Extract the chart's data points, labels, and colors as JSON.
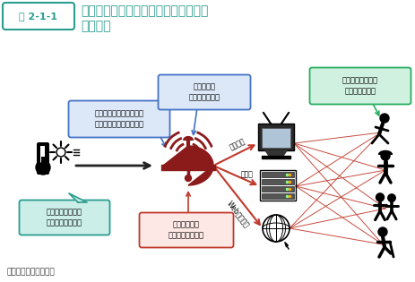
{
  "title_box_label": "図 2-1-1",
  "title_line1": "熱中症予防に関する新たな情報発信の",
  "title_line2": "イメージ",
  "source": "資料：環境省、気象庁",
  "callout_blue1_text": "防災気象情報のノウハウ\nを活かした効果的な発信",
  "callout_blue2_text": "確立された\n伝達経路の活用",
  "callout_teal_text": "暑さ指数を用いた\n実効的な発表基準",
  "callout_red_text": "発信力の強い\n統一的指標の創設",
  "callout_green_text": "各主体との連携に\nよる適切な対応",
  "label_tv": "報道機関",
  "label_jichitai": "自治体",
  "label_web": "Web・メール",
  "bg_color": "#ffffff",
  "title_color": "#2a9d8f",
  "box_teal_border": "#2a9d8f",
  "callout_blue_border": "#4472c4",
  "callout_blue_bg": "#dce8f8",
  "callout_teal_border": "#2a9d8f",
  "callout_teal_bg": "#cceee8",
  "callout_red_border": "#c0392b",
  "callout_red_bg": "#fde8e6",
  "callout_green_border": "#27ae60",
  "callout_green_bg": "#d0f0e0",
  "bell_color": "#8b1a1a",
  "arrow_dark": "#222222",
  "arrow_red": "#c0392b"
}
